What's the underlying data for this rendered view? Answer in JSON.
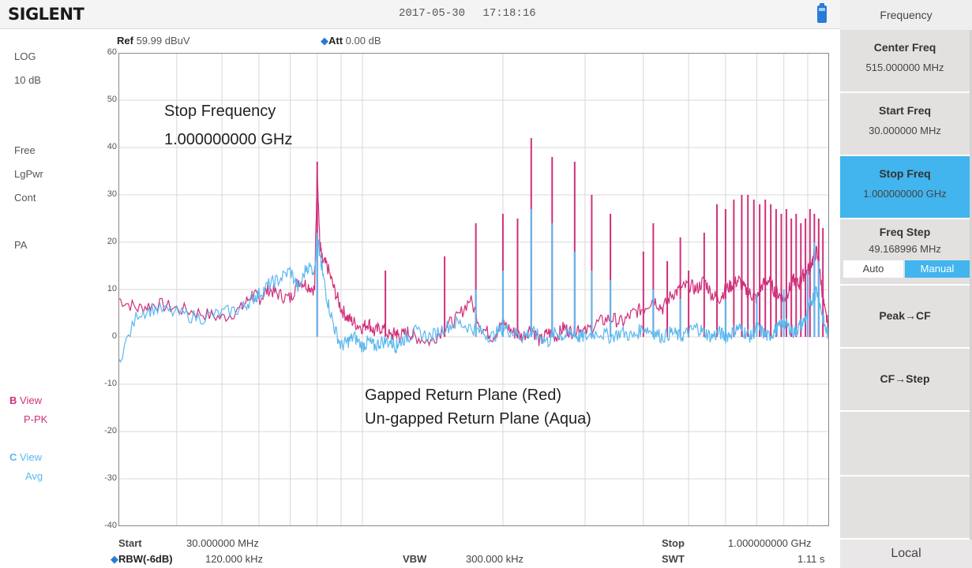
{
  "header": {
    "logo": "SIGLENT",
    "date": "2017-05-30",
    "time": "17:18:16"
  },
  "left_panel": {
    "scale_type": "LOG",
    "scale_div": "10 dB",
    "trigger": "Free",
    "detector": "LgPwr",
    "sweep_mode": "Cont",
    "preamp": "PA",
    "trace_b_label": "B",
    "trace_b_view": "View",
    "trace_b_detector": "P-PK",
    "trace_c_label": "C",
    "trace_c_view": "View",
    "trace_c_detector": "Avg"
  },
  "plot_header": {
    "ref_label": "Ref",
    "ref_value": "59.99 dBuV",
    "att_label": "Att",
    "att_value": "0.00 dB"
  },
  "annotations": {
    "stop_title": "Stop Frequency",
    "stop_value": "1.000000000 GHz",
    "legend_line1": "Gapped Return Plane (Red)",
    "legend_line2": "Un-gapped Return Plane (Aqua)"
  },
  "footer": {
    "start_label": "Start",
    "start_value": "30.000000 MHz",
    "rbw_label": "RBW(-6dB)",
    "rbw_value": "120.000 kHz",
    "vbw_label": "VBW",
    "vbw_value": "300.000 kHz",
    "stop_label": "Stop",
    "stop_value": "1.000000000 GHz",
    "swt_label": "SWT",
    "swt_value": "1.11 s"
  },
  "menu": {
    "header": "Frequency",
    "center_title": "Center Freq",
    "center_value": "515.000000 MHz",
    "start_title": "Start Freq",
    "start_value": "30.000000 MHz",
    "stop_title": "Stop Freq",
    "stop_value": "1.000000000 GHz",
    "step_title": "Freq Step",
    "step_value": "49.168996 MHz",
    "step_auto": "Auto",
    "step_manual": "Manual",
    "peak_cf": "Peak→CF",
    "cf_step": "CF→Step",
    "local": "Local"
  },
  "colors": {
    "trace_b": "#d0307a",
    "trace_c": "#5bb8ef",
    "selected": "#42b4ee"
  },
  "chart_data": {
    "type": "line",
    "ylim": [
      -40,
      60
    ],
    "yticks": [
      "60",
      "50",
      "40",
      "30",
      "20",
      "10",
      "0",
      "-10",
      "-20",
      "-30",
      "-40"
    ],
    "x_scale": "log",
    "xlim_mhz": [
      30,
      1000
    ],
    "series": [
      {
        "name": "Gapped Return Plane (Red)",
        "color": "#d0307a",
        "x": [
          30,
          33,
          36,
          40,
          45,
          50,
          55,
          58,
          60,
          63,
          66,
          70,
          73,
          76,
          79,
          80,
          81,
          82,
          84,
          87,
          90,
          93,
          96,
          100,
          103,
          106,
          110,
          115,
          118,
          120,
          125,
          130,
          140,
          150,
          160,
          170,
          180,
          190,
          200,
          210,
          220,
          230,
          240,
          250,
          260,
          270,
          280,
          290,
          300,
          320,
          340,
          360,
          380,
          400,
          420,
          440,
          460,
          480,
          500,
          520,
          540,
          560,
          580,
          600,
          620,
          640,
          660,
          680,
          700,
          720,
          740,
          760,
          780,
          800,
          820,
          840,
          860,
          880,
          900,
          920,
          940,
          960,
          980,
          1000
        ],
        "y": [
          8,
          6,
          7,
          6,
          5,
          4,
          6,
          9,
          8,
          10,
          9,
          8,
          12,
          11,
          10,
          36,
          20,
          16,
          15,
          10,
          6,
          4,
          3,
          2,
          3,
          1,
          2,
          0,
          1,
          0,
          1,
          0,
          -1,
          2,
          4,
          8,
          2,
          0,
          3,
          1,
          0,
          2,
          -1,
          1,
          0,
          2,
          1,
          2,
          1,
          3,
          4,
          3,
          5,
          6,
          8,
          6,
          9,
          10,
          11,
          10,
          12,
          9,
          8,
          10,
          11,
          12,
          10,
          9,
          8,
          11,
          12,
          10,
          9,
          8,
          10,
          12,
          11,
          13,
          14,
          16,
          18,
          12,
          5,
          2
        ]
      },
      {
        "name": "Un-gapped Return Plane (Aqua)",
        "color": "#5bb8ef",
        "x": [
          30,
          33,
          36,
          40,
          45,
          50,
          55,
          58,
          60,
          63,
          66,
          70,
          73,
          76,
          79,
          80,
          81,
          82,
          84,
          87,
          90,
          93,
          96,
          100,
          103,
          106,
          110,
          115,
          118,
          120,
          125,
          130,
          140,
          150,
          160,
          170,
          180,
          190,
          200,
          210,
          220,
          230,
          240,
          250,
          260,
          270,
          280,
          290,
          300,
          320,
          340,
          360,
          380,
          400,
          420,
          440,
          460,
          480,
          500,
          520,
          540,
          560,
          580,
          600,
          620,
          640,
          660,
          680,
          700,
          720,
          740,
          760,
          780,
          800,
          820,
          840,
          860,
          880,
          900,
          920,
          940,
          960,
          980,
          1000
        ],
        "y": [
          -5,
          5,
          6,
          5,
          4,
          5,
          6,
          8,
          9,
          11,
          12,
          14,
          10,
          15,
          14,
          22,
          17,
          14,
          8,
          2,
          -2,
          -1,
          0,
          -2,
          -1,
          -2,
          -1,
          -1,
          -2,
          -1,
          0,
          1,
          0,
          2,
          3,
          2,
          1,
          0,
          2,
          1,
          0,
          1,
          0,
          -1,
          1,
          0,
          1,
          0,
          0,
          1,
          0,
          1,
          0,
          2,
          1,
          0,
          1,
          0,
          1,
          2,
          1,
          0,
          1,
          0,
          1,
          2,
          1,
          0,
          2,
          1,
          0,
          1,
          2,
          3,
          2,
          1,
          2,
          3,
          5,
          8,
          10,
          6,
          2,
          0
        ]
      }
    ],
    "spikes": {
      "gapped": [
        [
          80,
          37
        ],
        [
          112,
          14
        ],
        [
          150,
          17
        ],
        [
          175,
          24
        ],
        [
          200,
          26
        ],
        [
          215,
          25
        ],
        [
          230,
          42
        ],
        [
          255,
          38
        ],
        [
          285,
          37
        ],
        [
          310,
          30
        ],
        [
          340,
          26
        ],
        [
          400,
          18
        ],
        [
          420,
          24
        ],
        [
          450,
          16
        ],
        [
          480,
          21
        ],
        [
          500,
          14
        ],
        [
          540,
          22
        ],
        [
          575,
          28
        ],
        [
          600,
          27
        ],
        [
          625,
          29
        ],
        [
          650,
          30
        ],
        [
          670,
          30
        ],
        [
          690,
          29
        ],
        [
          710,
          28
        ],
        [
          730,
          29
        ],
        [
          750,
          28
        ],
        [
          770,
          27
        ],
        [
          790,
          26
        ],
        [
          810,
          27
        ],
        [
          830,
          25
        ],
        [
          850,
          26
        ],
        [
          870,
          24
        ],
        [
          890,
          25
        ],
        [
          910,
          27
        ],
        [
          930,
          26
        ],
        [
          950,
          25
        ],
        [
          970,
          23
        ]
      ],
      "ungapped": [
        [
          80,
          22
        ],
        [
          175,
          10
        ],
        [
          200,
          14
        ],
        [
          230,
          27
        ],
        [
          255,
          24
        ],
        [
          285,
          18
        ],
        [
          310,
          14
        ],
        [
          340,
          12
        ],
        [
          420,
          10
        ],
        [
          480,
          8
        ],
        [
          600,
          8
        ],
        [
          700,
          9
        ],
        [
          800,
          10
        ],
        [
          900,
          14
        ],
        [
          930,
          20
        ],
        [
          950,
          16
        ]
      ]
    }
  }
}
